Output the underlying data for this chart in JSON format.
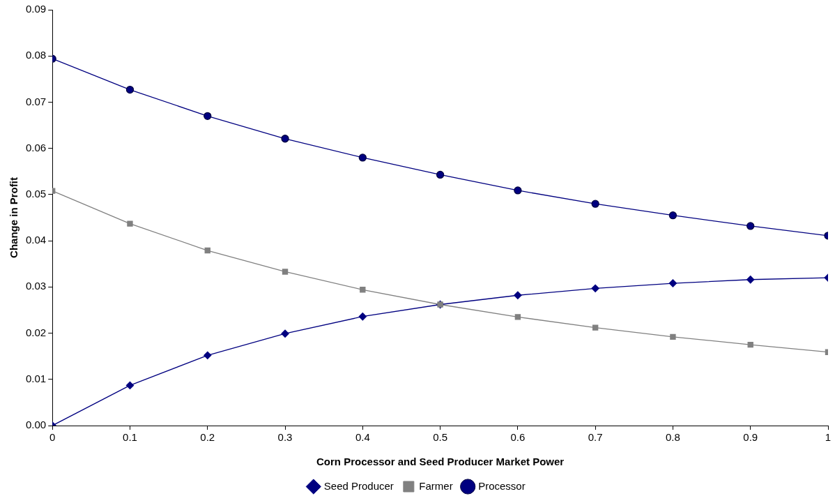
{
  "chart_data": {
    "type": "line",
    "xlabel": "Corn Processor and Seed Producer Market Power",
    "ylabel": "Change in Profit",
    "x": [
      0,
      0.1,
      0.2,
      0.3,
      0.4,
      0.5,
      0.6,
      0.7,
      0.8,
      0.9,
      1
    ],
    "xlim": [
      0,
      1
    ],
    "xticks": [
      0,
      0.1,
      0.2,
      0.3,
      0.4,
      0.5,
      0.6,
      0.7,
      0.8,
      0.9,
      1
    ],
    "ylim": [
      0,
      0.09
    ],
    "yticks": [
      {
        "value": 0,
        "label": "0.00"
      },
      {
        "value": 0.01,
        "label": "0.01"
      },
      {
        "value": 0.02,
        "label": "0.02"
      },
      {
        "value": 0.03,
        "label": "0.03"
      },
      {
        "value": 0.04,
        "label": "0.04"
      },
      {
        "value": 0.05,
        "label": "0.05"
      },
      {
        "value": 0.06,
        "label": "0.06"
      },
      {
        "value": 0.07,
        "label": "0.07"
      },
      {
        "value": 0.08,
        "label": "0.08"
      },
      {
        "value": 0.09,
        "label": "0.09"
      }
    ],
    "grid": false,
    "legend": "bottom",
    "line_style": "solid",
    "series": [
      {
        "name": "Seed Producer",
        "color": "#000080",
        "marker": "diamond",
        "values": [
          0,
          0.0087,
          0.0152,
          0.0199,
          0.0236,
          0.0262,
          0.0282,
          0.0297,
          0.0308,
          0.0316,
          0.032
        ]
      },
      {
        "name": "Farmer",
        "color": "#808080",
        "marker": "square",
        "values": [
          0.0508,
          0.0437,
          0.0379,
          0.0333,
          0.0294,
          0.0262,
          0.0235,
          0.0212,
          0.0192,
          0.0175,
          0.0159
        ]
      },
      {
        "name": "Processor",
        "color": "#000080",
        "marker": "circle",
        "values": [
          0.0794,
          0.0727,
          0.067,
          0.0621,
          0.058,
          0.0543,
          0.0509,
          0.048,
          0.0455,
          0.0432,
          0.0411
        ]
      }
    ]
  }
}
